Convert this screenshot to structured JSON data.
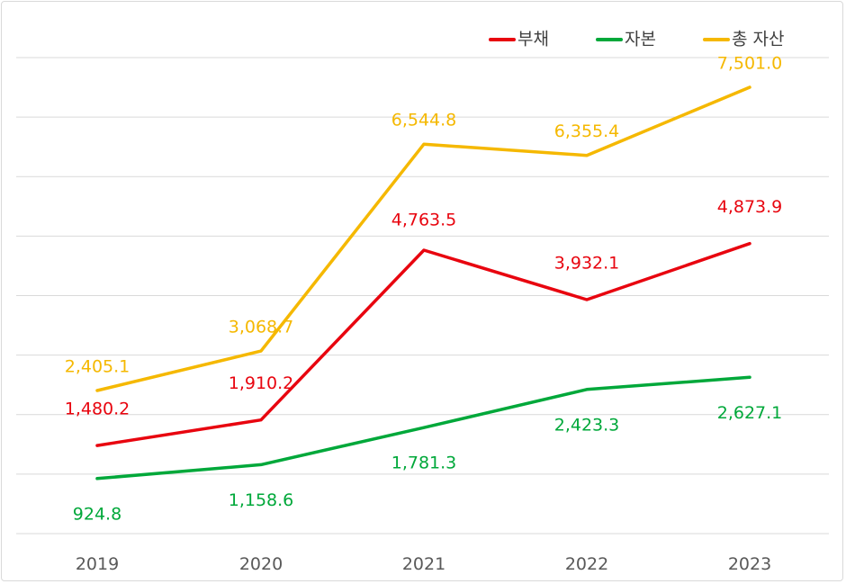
{
  "chart_data": {
    "type": "line",
    "title": "",
    "xlabel": "",
    "ylabel": "",
    "categories": [
      "2019",
      "2020",
      "2021",
      "2022",
      "2023"
    ],
    "ylim": [
      0,
      8000
    ],
    "grid": true,
    "legend_position": "top-right",
    "series": [
      {
        "name": "부채",
        "color": "#e8050f",
        "values": [
          1480.2,
          1910.2,
          4763.5,
          3932.1,
          4873.9
        ],
        "labels": [
          "1,480.2",
          "1,910.2",
          "4,763.5",
          "3,932.1",
          "4,873.9"
        ]
      },
      {
        "name": "자본",
        "color": "#00a83a",
        "values": [
          924.8,
          1158.6,
          1781.3,
          2423.3,
          2627.1
        ],
        "labels": [
          "924.8",
          "1,158.6",
          "1,781.3",
          "2,423.3",
          "2,627.1"
        ]
      },
      {
        "name": "총 자산",
        "color": "#f5b800",
        "values": [
          2405.1,
          3068.7,
          6544.8,
          6355.4,
          7501.0
        ],
        "labels": [
          "2,405.1",
          "3,068.7",
          "6,544.8",
          "6,355.4",
          "7,501.0"
        ]
      }
    ]
  }
}
